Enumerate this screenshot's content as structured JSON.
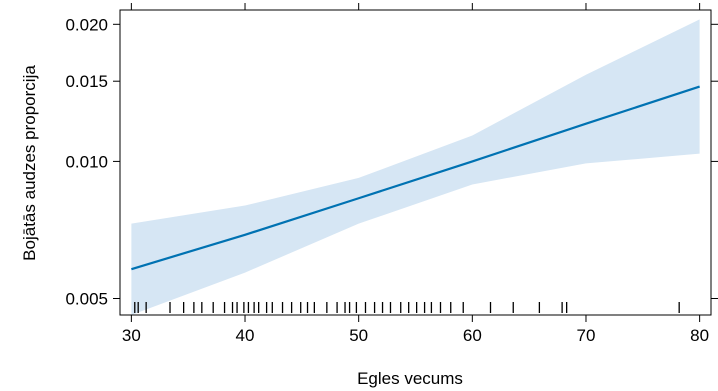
{
  "chart_data": {
    "type": "line",
    "title": "",
    "xlabel": "Egles vecums",
    "ylabel": "Bojātās audzes proporcija",
    "xlim": [
      29,
      81
    ],
    "ylim": [
      0.0046,
      0.0215
    ],
    "y_scale": "log",
    "x_ticks": [
      30,
      40,
      50,
      60,
      70,
      80
    ],
    "x_tick_labels": [
      "30",
      "40",
      "50",
      "60",
      "70",
      "80"
    ],
    "y_ticks": [
      0.005,
      0.01,
      0.015,
      0.02
    ],
    "y_tick_labels": [
      "0.005",
      "0.010",
      "0.015",
      "0.020"
    ],
    "series": [
      {
        "x": [
          30,
          40,
          50,
          60,
          70,
          80
        ],
        "fit": [
          0.0058,
          0.0069,
          0.0083,
          0.01,
          0.0121,
          0.0146
        ],
        "lower": [
          0.0046,
          0.0057,
          0.0073,
          0.0089,
          0.0099,
          0.0104
        ],
        "upper": [
          0.0073,
          0.008,
          0.0092,
          0.0114,
          0.0155,
          0.0205
        ]
      }
    ],
    "rug": [
      30.3,
      30.6,
      31.3,
      33.4,
      34.6,
      35.5,
      36.2,
      37.2,
      38.2,
      38.9,
      39.3,
      39.9,
      40.3,
      40.8,
      41.2,
      41.9,
      42.4,
      43.3,
      44.1,
      44.9,
      45.5,
      46.1,
      47.2,
      48.1,
      48.8,
      49.2,
      49.8,
      50.6,
      51.4,
      52.1,
      52.8,
      53.7,
      54.4,
      55.1,
      55.8,
      56.4,
      57.2,
      58.1,
      59.2,
      61.6,
      63.6,
      65.9,
      67.9,
      68.3,
      78.2
    ],
    "colors": {
      "line": "#0072b2",
      "band": "#d6e6f4",
      "rug": "#000000"
    }
  }
}
